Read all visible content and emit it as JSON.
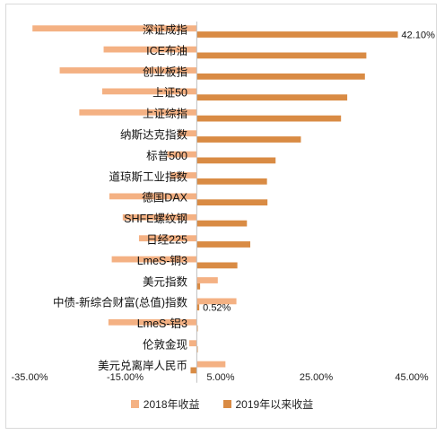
{
  "colors": {
    "s2018": "#F4B183",
    "s2019": "#D98B44"
  },
  "chart_data": {
    "type": "bar",
    "orientation": "horizontal",
    "categories": [
      "深证成指",
      "ICE布油",
      "创业板指",
      "上证50",
      "上证综指",
      "纳斯达克指数",
      "标普500",
      "道琼斯工业指数",
      "德国DAX",
      "SHFE螺纹钢",
      "日经225",
      "LmeS-铜3",
      "美元指数",
      "中债-新综合财富(总值)指数",
      "LmeS-铝3",
      "伦敦金现",
      "美元兑离岸人民币"
    ],
    "series": [
      {
        "name": "2018年收益",
        "color": "#F4B183",
        "values": [
          -34.4,
          -19.5,
          -28.7,
          -19.8,
          -24.6,
          -3.9,
          -6.2,
          -5.6,
          -18.3,
          -15.5,
          -12.1,
          -17.8,
          4.4,
          8.3,
          -18.5,
          -1.6,
          6.0
        ]
      },
      {
        "name": "2019年以来收益",
        "color": "#D98B44",
        "values": [
          42.1,
          35.5,
          35.2,
          31.5,
          30.2,
          21.8,
          16.5,
          14.7,
          14.8,
          10.5,
          11.2,
          8.5,
          0.7,
          0.52,
          0.2,
          0.2,
          -1.3
        ]
      }
    ],
    "data_labels": [
      {
        "category": "深证成指",
        "series": "2019年以来收益",
        "text": "42.10%"
      },
      {
        "category": "中债-新综合财富(总值)指数",
        "series": "2019年以来收益",
        "text": "0.52%"
      }
    ],
    "xlim": [
      -35,
      45
    ],
    "x_ticks": [
      -35,
      -15,
      5,
      25,
      45
    ],
    "x_tick_labels": [
      "-35.00%",
      "-15.00%",
      "5.00%",
      "25.00%",
      "45.00%"
    ],
    "grid": false,
    "legend_position": "bottom"
  }
}
